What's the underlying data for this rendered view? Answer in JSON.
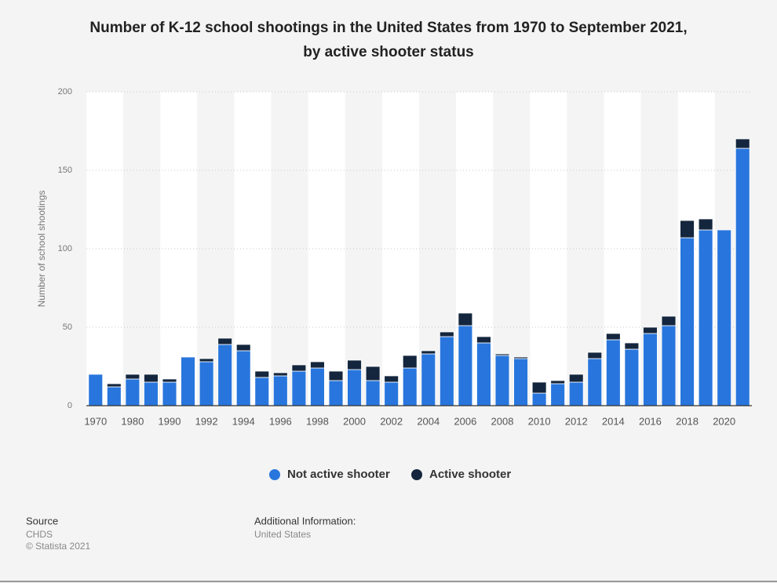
{
  "chart_data": {
    "type": "stacked_bar",
    "title": "Number of K-12 school shootings in the United States from 1970 to September 2021,",
    "subtitle": "by active shooter status",
    "y_label": "Number of school shootings",
    "categories": [
      "1970",
      null,
      "1980",
      null,
      "1990",
      null,
      "1992",
      null,
      "1994",
      null,
      "1996",
      null,
      "1998",
      null,
      "2000",
      null,
      "2002",
      null,
      "2004",
      null,
      "2006",
      null,
      "2008",
      null,
      "2010",
      null,
      "2012",
      null,
      "2014",
      null,
      "2016",
      null,
      "2018",
      null,
      "2020",
      null
    ],
    "series": [
      {
        "name": "Not active shooter",
        "color": "#2876dd",
        "values": [
          20,
          12,
          17,
          15,
          15,
          31,
          28,
          39,
          35,
          18,
          19,
          22,
          24,
          16,
          23,
          16,
          15,
          24,
          33,
          44,
          51,
          40,
          32,
          30,
          8,
          14,
          15,
          30,
          42,
          36,
          46,
          51,
          107,
          112,
          112,
          164
        ]
      },
      {
        "name": "Active shooter",
        "color": "#14263d",
        "values": [
          0,
          2,
          3,
          5,
          2,
          0,
          2,
          4,
          4,
          4,
          2,
          4,
          4,
          6,
          6,
          9,
          4,
          8,
          2,
          3,
          8,
          4,
          1,
          1,
          7,
          2,
          5,
          4,
          4,
          4,
          4,
          6,
          11,
          7,
          0,
          6
        ]
      }
    ],
    "ylim": [
      0,
      200
    ],
    "yticks": [
      0,
      50,
      100,
      150,
      200
    ],
    "grid": true,
    "legend": "bottom"
  },
  "footer": {
    "source_title": "Source",
    "source": "CHDS",
    "copyright": "© Statista 2021",
    "info_title": "Additional Information:",
    "info": "United States"
  }
}
